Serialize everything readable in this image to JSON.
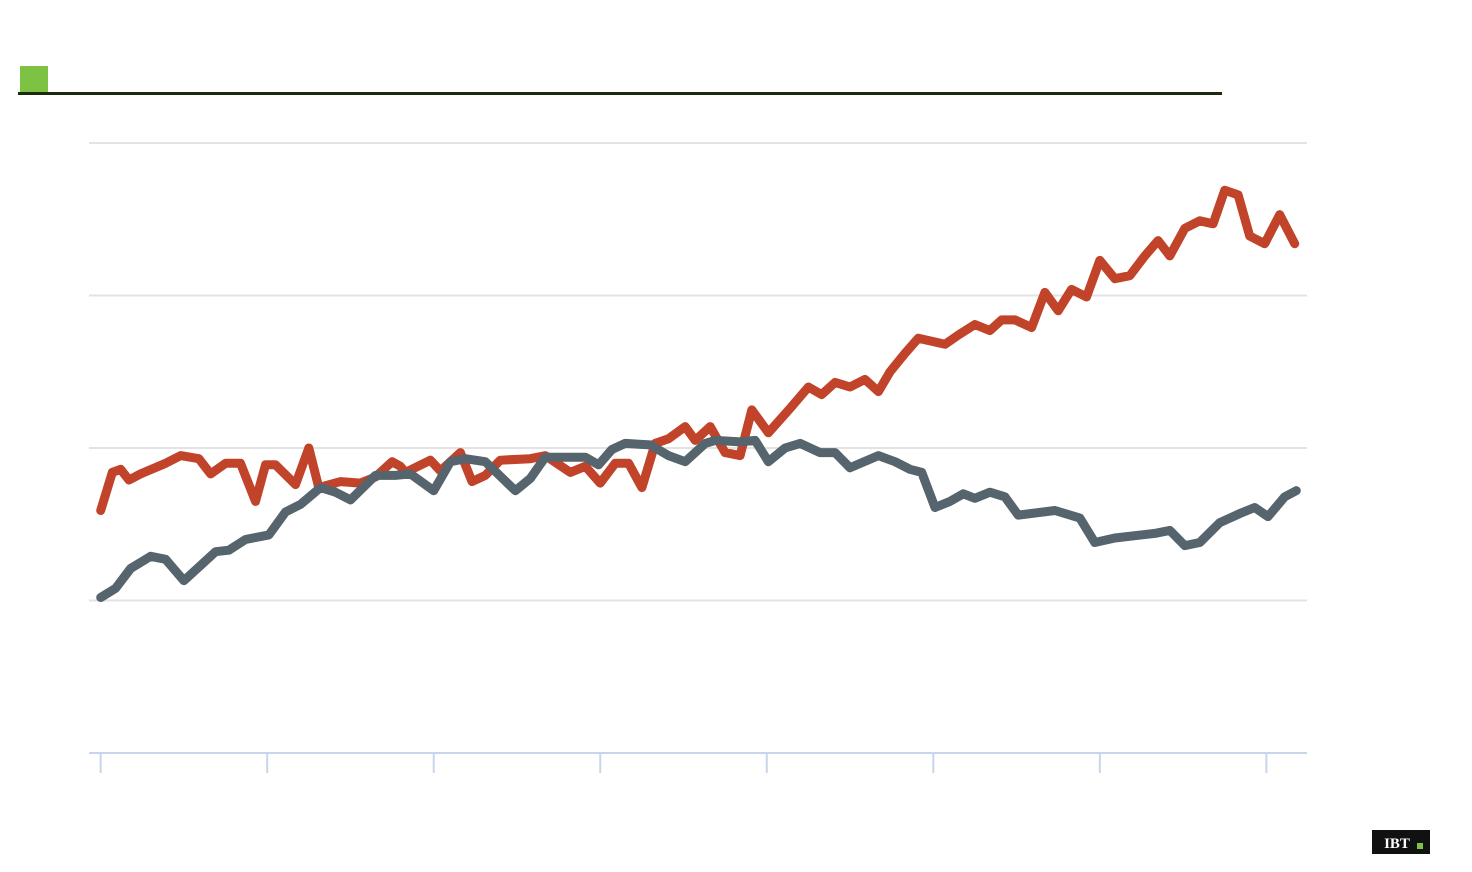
{
  "chart_data": {
    "type": "line",
    "logo": "IBT",
    "xlim": [
      -0.07,
      7.25
    ],
    "xticks": [
      0,
      1,
      2,
      3,
      4,
      5,
      6,
      7
    ],
    "ylim": [
      0,
      4
    ],
    "yticks": [
      0,
      1,
      2,
      3,
      4
    ],
    "grid": true,
    "series": [
      {
        "color": "#c0432a",
        "x": [
          0.0,
          0.07,
          0.12,
          0.17,
          0.24,
          0.39,
          0.48,
          0.59,
          0.66,
          0.75,
          0.84,
          0.93,
          0.99,
          1.05,
          1.17,
          1.25,
          1.31,
          1.44,
          1.56,
          1.65,
          1.75,
          1.8,
          1.83,
          1.98,
          2.04,
          2.16,
          2.23,
          2.31,
          2.4,
          2.58,
          2.67,
          2.82,
          2.91,
          3.0,
          3.09,
          3.17,
          3.25,
          3.33,
          3.41,
          3.51,
          3.57,
          3.66,
          3.75,
          3.84,
          3.91,
          4.01,
          4.14,
          4.25,
          4.33,
          4.41,
          4.5,
          4.59,
          4.67,
          4.74,
          4.83,
          4.91,
          5.07,
          5.15,
          5.25,
          5.34,
          5.41,
          5.49,
          5.59,
          5.67,
          5.75,
          5.83,
          5.92,
          6.0,
          6.09,
          6.18,
          6.27,
          6.35,
          6.42,
          6.51,
          6.6,
          6.68,
          6.75,
          6.83,
          6.9,
          6.99,
          7.08,
          7.17
        ],
        "values": [
          1.59,
          1.84,
          1.86,
          1.79,
          1.83,
          1.9,
          1.95,
          1.93,
          1.83,
          1.9,
          1.9,
          1.65,
          1.89,
          1.89,
          1.76,
          2.0,
          1.74,
          1.78,
          1.77,
          1.81,
          1.91,
          1.88,
          1.84,
          1.92,
          1.85,
          1.97,
          1.78,
          1.82,
          1.92,
          1.93,
          1.95,
          1.84,
          1.88,
          1.77,
          1.9,
          1.9,
          1.74,
          2.03,
          2.06,
          2.14,
          2.05,
          2.14,
          1.97,
          1.95,
          2.25,
          2.1,
          2.26,
          2.4,
          2.35,
          2.43,
          2.4,
          2.45,
          2.37,
          2.5,
          2.62,
          2.72,
          2.68,
          2.74,
          2.81,
          2.77,
          2.84,
          2.84,
          2.79,
          3.02,
          2.9,
          3.04,
          2.99,
          3.23,
          3.11,
          3.13,
          3.26,
          3.36,
          3.26,
          3.44,
          3.49,
          3.47,
          3.69,
          3.66,
          3.39,
          3.34,
          3.53,
          3.34
        ]
      },
      {
        "color": "#56646d",
        "x": [
          0.0,
          0.09,
          0.18,
          0.3,
          0.39,
          0.5,
          0.6,
          0.69,
          0.77,
          0.87,
          1.01,
          1.11,
          1.2,
          1.32,
          1.41,
          1.5,
          1.65,
          1.77,
          1.86,
          2.0,
          2.1,
          2.19,
          2.31,
          2.49,
          2.58,
          2.67,
          2.91,
          2.99,
          3.07,
          3.15,
          3.3,
          3.41,
          3.51,
          3.63,
          3.69,
          3.84,
          3.93,
          4.01,
          4.11,
          4.2,
          4.32,
          4.41,
          4.5,
          4.67,
          4.77,
          4.86,
          4.93,
          5.01,
          5.1,
          5.18,
          5.25,
          5.34,
          5.43,
          5.51,
          5.73,
          5.88,
          5.97,
          6.09,
          6.33,
          6.42,
          6.51,
          6.6,
          6.72,
          6.84,
          6.93,
          7.01,
          7.11,
          7.18
        ],
        "values": [
          1.02,
          1.08,
          1.21,
          1.29,
          1.27,
          1.13,
          1.23,
          1.32,
          1.33,
          1.4,
          1.43,
          1.58,
          1.63,
          1.74,
          1.71,
          1.66,
          1.82,
          1.82,
          1.83,
          1.72,
          1.91,
          1.93,
          1.91,
          1.72,
          1.8,
          1.94,
          1.94,
          1.89,
          1.99,
          2.03,
          2.02,
          1.95,
          1.91,
          2.03,
          2.05,
          2.04,
          2.05,
          1.91,
          2.0,
          2.03,
          1.97,
          1.97,
          1.87,
          1.95,
          1.91,
          1.86,
          1.84,
          1.61,
          1.65,
          1.7,
          1.67,
          1.71,
          1.68,
          1.56,
          1.59,
          1.54,
          1.38,
          1.41,
          1.44,
          1.46,
          1.36,
          1.38,
          1.51,
          1.57,
          1.61,
          1.55,
          1.68,
          1.72
        ]
      }
    ]
  }
}
